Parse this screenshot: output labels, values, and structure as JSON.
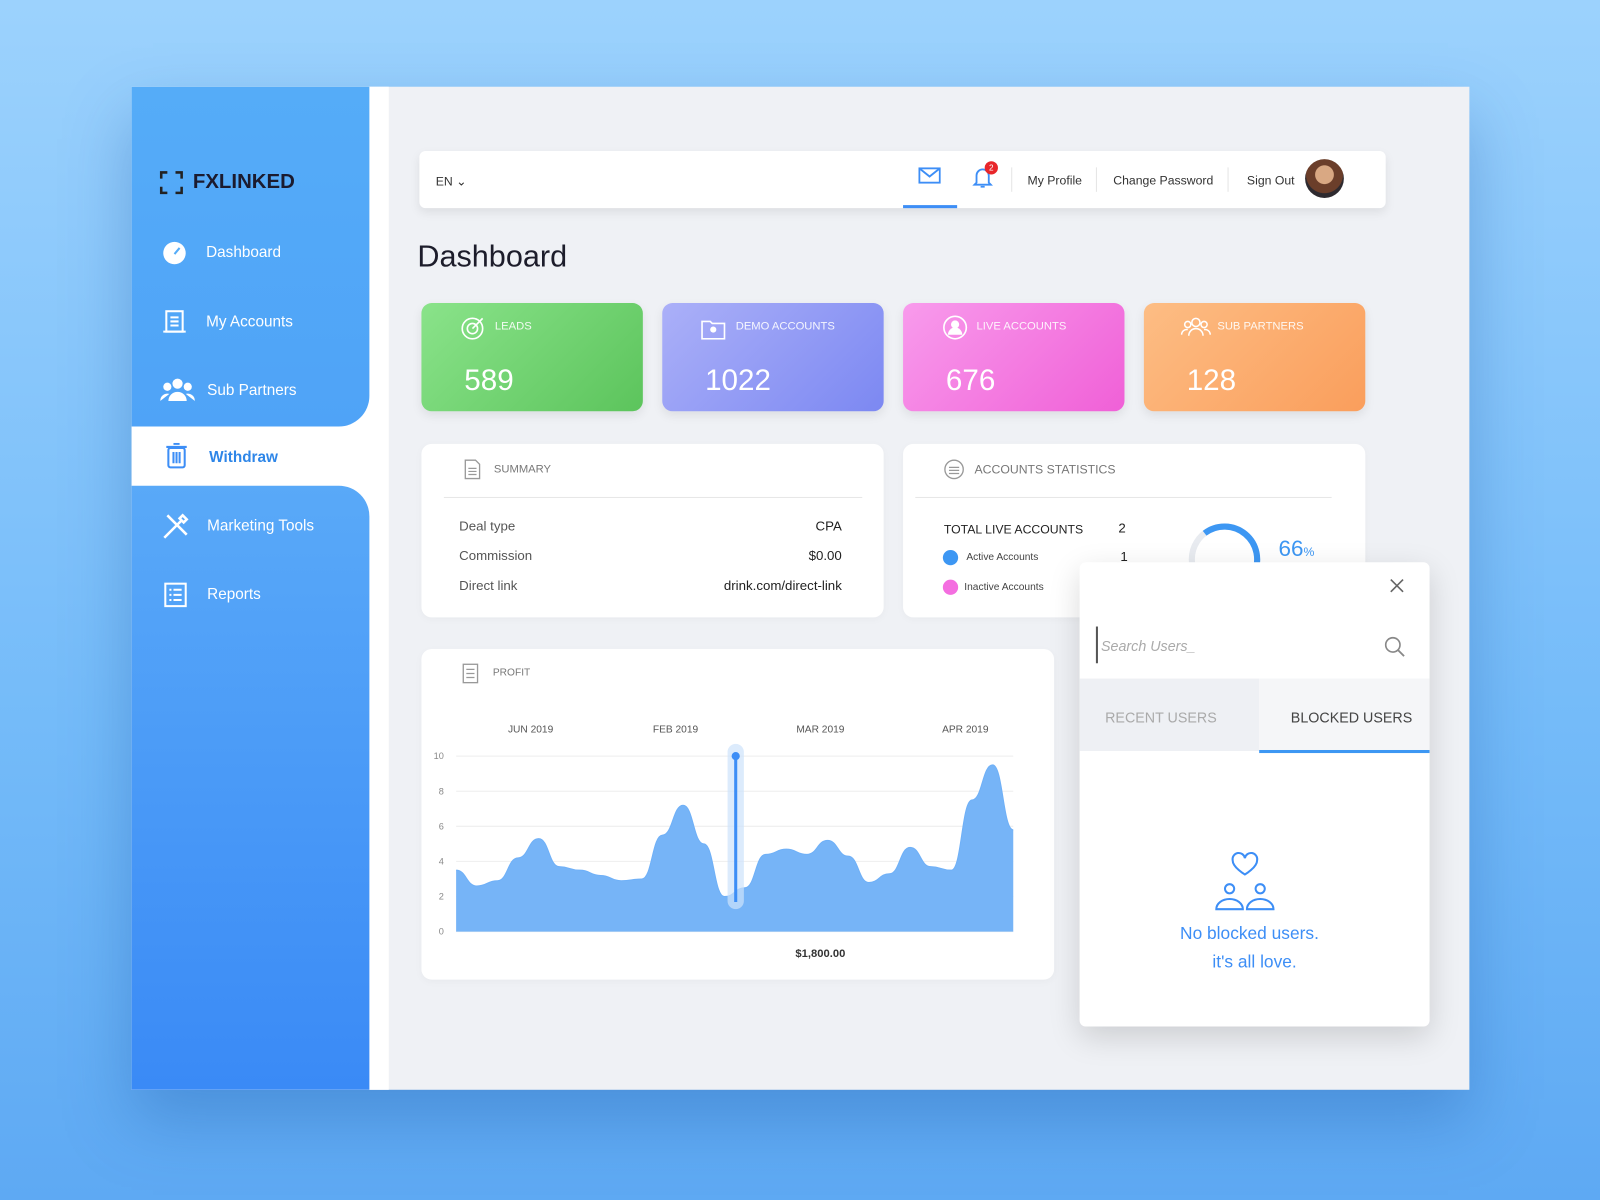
{
  "sidebar": {
    "brand": "FXLINKED",
    "nav": [
      "Dashboard",
      "My Accounts",
      "Sub Partners",
      "Withdraw",
      "Marketing Tools",
      "Reports"
    ]
  },
  "topbar": {
    "language": "EN",
    "notification_count": 2,
    "links": [
      "My Profile",
      "Change Password",
      "Sign Out"
    ]
  },
  "page_title": "Dashboard",
  "stat_cards": [
    {
      "label": "LEADS",
      "value": 589
    },
    {
      "label": "DEMO ACCOUNTS",
      "value": 1022
    },
    {
      "label": "LIVE ACCOUNTS",
      "value": 676
    },
    {
      "label": "SUB PARTNERS",
      "value": 128
    }
  ],
  "summary": {
    "title": "SUMMARY",
    "rows": [
      [
        "Deal type",
        "CPA"
      ],
      [
        "Commission",
        "$0.00"
      ],
      [
        "Direct link",
        "drink.com/direct-link"
      ]
    ]
  },
  "accounts_statistics": {
    "title": "ACCOUNTS STATISTICS",
    "total_label": "TOTAL LIVE ACCOUNTS",
    "total": 2,
    "rows": [
      {
        "label": "Active Accounts",
        "value": 1
      },
      {
        "label": "Inactive Accounts"
      }
    ],
    "percent": 66,
    "percent_unit": "%"
  },
  "profit": {
    "type": "area",
    "title": "PROFIT",
    "x_labels": [
      "JUN 2019",
      "FEB 2019",
      "MAR 2019",
      "APR 2019"
    ],
    "values": [
      3.5,
      2.6,
      2.9,
      4.2,
      5.3,
      3.7,
      3.5,
      3.2,
      2.9,
      3.0,
      5.5,
      7.2,
      5.0,
      2.0,
      2.5,
      4.4,
      4.7,
      4.4,
      5.2,
      4.3,
      2.8,
      3.3,
      4.8,
      3.7,
      3.5,
      7.5,
      9.5,
      5.8
    ],
    "ylim": [
      0,
      10
    ],
    "yticks": [
      0,
      2,
      4,
      6,
      8,
      10
    ],
    "grid": true,
    "color": "#6fb0f7",
    "tooltip": "$1,800.00"
  },
  "user_popup": {
    "search_placeholder": "Search Users_",
    "tabs": [
      "RECENT USERS",
      "BLOCKED USERS"
    ],
    "empty_message": [
      "No blocked users.",
      "it's all love."
    ]
  }
}
